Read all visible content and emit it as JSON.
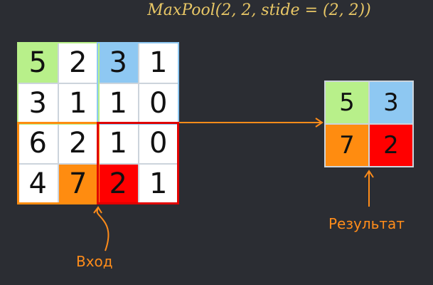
{
  "formula": "MaxPool(2, 2, stide = (2, 2))",
  "input_matrix": [
    [
      5,
      2,
      3,
      1
    ],
    [
      3,
      1,
      1,
      0
    ],
    [
      6,
      2,
      1,
      0
    ],
    [
      4,
      7,
      2,
      1
    ]
  ],
  "output_matrix": [
    [
      5,
      3
    ],
    [
      7,
      2
    ]
  ],
  "labels": {
    "input": "Вход",
    "result": "Результат"
  },
  "colors": {
    "green": "#b8f08a",
    "blue": "#8ec8f2",
    "orange": "#ff8c10",
    "red": "#ff0000",
    "accent_text": "#ff8c1a",
    "formula_text": "#e8c766",
    "background": "#2b2d33"
  },
  "highlights": {
    "input": [
      {
        "row": 0,
        "col": 0,
        "color": "green"
      },
      {
        "row": 0,
        "col": 2,
        "color": "blue"
      },
      {
        "row": 3,
        "col": 1,
        "color": "orange"
      },
      {
        "row": 3,
        "col": 2,
        "color": "red"
      }
    ],
    "output": [
      {
        "row": 0,
        "col": 0,
        "color": "green"
      },
      {
        "row": 0,
        "col": 1,
        "color": "blue"
      },
      {
        "row": 1,
        "col": 0,
        "color": "orange"
      },
      {
        "row": 1,
        "col": 1,
        "color": "red"
      }
    ]
  }
}
